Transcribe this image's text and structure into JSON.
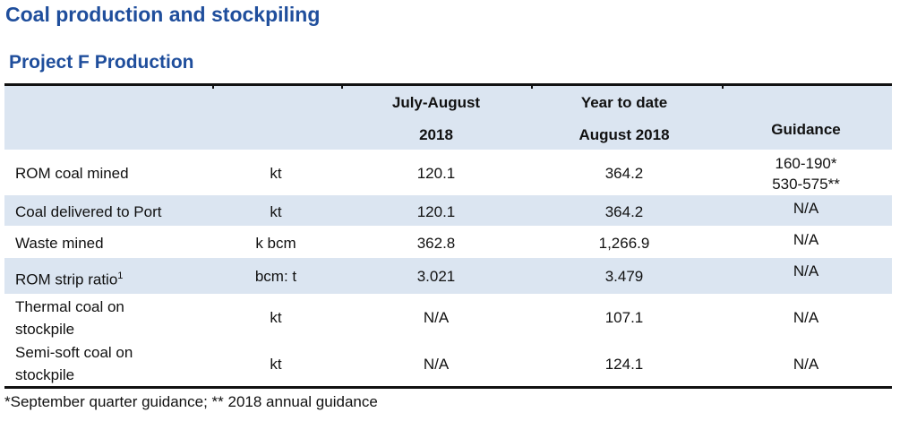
{
  "heading": "Coal production and stockpiling",
  "subheading": "Project F Production",
  "columns": {
    "period_line1": "July-August",
    "period_line2": "2018",
    "ytd_line1": "Year to date",
    "ytd_line2": "August 2018",
    "guidance": "Guidance"
  },
  "rows": [
    {
      "label": "ROM coal mined",
      "unit": "kt",
      "period": "120.1",
      "ytd": "364.2",
      "guidance_line1": "160-190*",
      "guidance_line2": "530-575**"
    },
    {
      "label": "Coal delivered to Port",
      "unit": "kt",
      "period": "120.1",
      "ytd": "364.2",
      "guidance": "N/A"
    },
    {
      "label": "Waste mined",
      "unit": "k bcm",
      "period": "362.8",
      "ytd": "1,266.9",
      "guidance": "N/A"
    },
    {
      "label": "ROM strip ratio",
      "label_sup": "1",
      "unit": "bcm: t",
      "period": "3.021",
      "ytd": "3.479",
      "guidance": "N/A"
    },
    {
      "label_line1": "Thermal coal on",
      "label_line2": "stockpile",
      "unit": "kt",
      "period": "N/A",
      "ytd": "107.1",
      "guidance": "N/A"
    },
    {
      "label_line1": "Semi-soft coal on",
      "label_line2": "stockpile",
      "unit": "kt",
      "period": "N/A",
      "ytd": "124.1",
      "guidance": "N/A"
    }
  ],
  "footnote": "*September quarter guidance;  ** 2018 annual guidance",
  "colors": {
    "title": "#1f4e9c",
    "band": "#dbe5f1",
    "rule": "#111111"
  }
}
